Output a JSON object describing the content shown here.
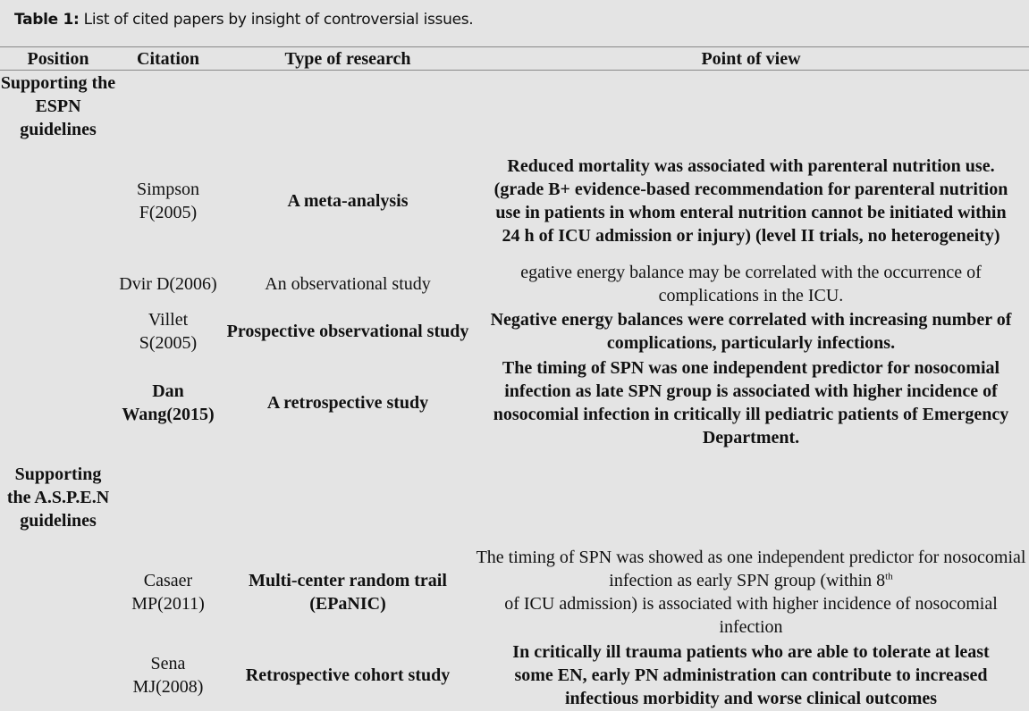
{
  "caption": {
    "label": "Table 1:",
    "text": " List of cited papers by insight of controversial issues."
  },
  "headers": [
    "Position",
    "Citation",
    "Type of research",
    "Point of view"
  ],
  "groups": [
    {
      "position": "Supporting the ESPN guidelines"
    },
    {
      "position": "Supporting the A.S.P.E.N guidelines"
    }
  ],
  "rows": [
    {
      "citation": "Simpson F(2005)",
      "type": "A meta-analysis",
      "view": "Reduced mortality was associated with parenteral nutrition use. (grade B+ evidence-based recommendation for parenteral nutrition use in patients in whom enteral nutrition cannot be initiated within 24 h of ICU admission or injury) (level II trials, no heterogeneity)"
    },
    {
      "citation": "Dvir D(2006)",
      "type": "An observational study",
      "view": "egative energy balance may be correlated with the occurrence of complications in the ICU."
    },
    {
      "citation": "Villet S(2005)",
      "type": "Prospective observational study",
      "view": "Negative energy balances were correlated with increasing number of complications, particularly infections."
    },
    {
      "citation": "Dan Wang(2015)",
      "type": "A retrospective study",
      "view": "The timing of SPN was one independent predictor for nosocomial infection as late SPN group is associated with higher incidence of nosocomial infection in critically ill pediatric patients of Emergency Department."
    },
    {
      "citation": "Casaer MP(2011)",
      "type": "Multi-center random trail (EPaNIC)",
      "view_before": "The timing of SPN was showed as one independent predictor for nosocomial infection as early SPN group (within 8",
      "view_sup": "th",
      "view_after": "of ICU admission) is associated with higher incidence of nosocomial infection"
    },
    {
      "citation": "Sena MJ(2008)",
      "type": "Retrospective cohort study",
      "view": "In critically ill trauma patients who are able to tolerate at least some EN, early PN administration can contribute to increased infectious morbidity and worse clinical outcomes"
    }
  ]
}
